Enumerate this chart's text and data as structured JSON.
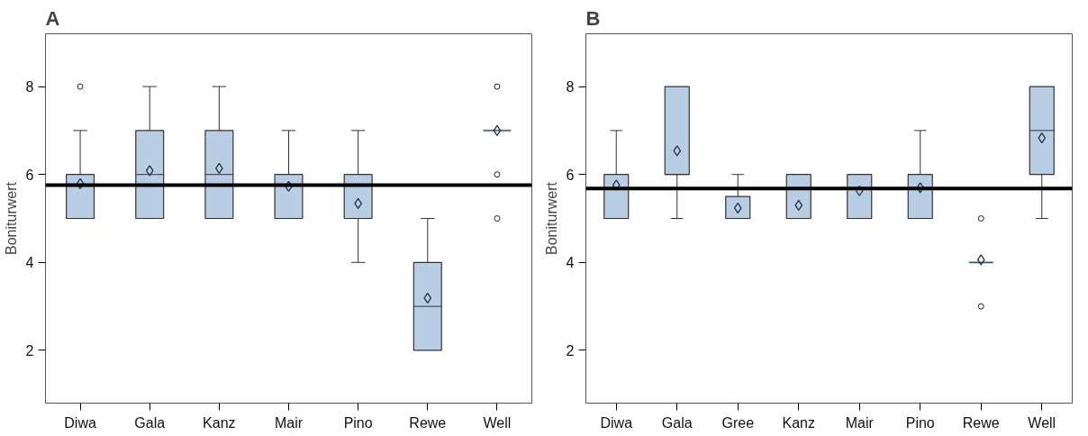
{
  "chart_data": [
    {
      "type": "box",
      "title": "A",
      "ylabel": "Boniturwert",
      "categories": [
        "Diwa",
        "Gala",
        "Kanz",
        "Mair",
        "Pino",
        "Rewe",
        "Well"
      ],
      "ylim": [
        0.8,
        9.2
      ],
      "yticks": [
        2,
        4,
        6,
        8
      ],
      "grid": false,
      "series": [
        {
          "color": "#b9cde5",
          "boxes": [
            {
              "low": 5,
              "q1": 5,
              "median": 5,
              "q3": 6,
              "high": 7,
              "mean": 5.79,
              "outliers": [
                8
              ]
            },
            {
              "low": 5,
              "q1": 5,
              "median": 6,
              "q3": 7,
              "high": 8,
              "mean": 6.09
            },
            {
              "low": 5,
              "q1": 5,
              "median": 6,
              "q3": 7,
              "high": 8,
              "mean": 6.14
            },
            {
              "low": 5,
              "q1": 5,
              "median": 5,
              "q3": 6,
              "high": 7,
              "mean": 5.73
            },
            {
              "low": 4,
              "q1": 5,
              "median": 5,
              "q3": 6,
              "high": 7,
              "mean": 5.34
            },
            {
              "low": 2,
              "q1": 2,
              "median": 3,
              "q3": 4,
              "high": 5,
              "mean": 3.19
            },
            {
              "low": 7,
              "q1": 7,
              "median": 7,
              "q3": 7,
              "high": 7,
              "mean": 7,
              "outliers": [
                8,
                6,
                5
              ]
            }
          ]
        }
      ],
      "ref_lines": [
        {
          "axis": "y",
          "value": 5.76,
          "color": "#000000"
        }
      ]
    },
    {
      "type": "box",
      "title": "B",
      "ylabel": "Boniturwert",
      "categories": [
        "Diwa",
        "Gala",
        "Gree",
        "Kanz",
        "Mair",
        "Pino",
        "Rewe",
        "Well"
      ],
      "ylim": [
        0.8,
        9.2
      ],
      "yticks": [
        2,
        4,
        6,
        8
      ],
      "grid": false,
      "series": [
        {
          "color": "#b9cde5",
          "boxes": [
            {
              "low": 5,
              "q1": 5,
              "median": 5,
              "q3": 6,
              "high": 7,
              "mean": 5.76
            },
            {
              "low": 5,
              "q1": 6,
              "median": 6,
              "q3": 8,
              "high": 8,
              "mean": 6.54
            },
            {
              "low": 5,
              "q1": 5,
              "median": 5,
              "q3": 5.5,
              "high": 6,
              "mean": 5.24
            },
            {
              "low": 5,
              "q1": 5,
              "median": 5,
              "q3": 6,
              "high": 6,
              "mean": 5.3
            },
            {
              "low": 5,
              "q1": 5,
              "median": 5,
              "q3": 6,
              "high": 6,
              "mean": 5.63
            },
            {
              "low": 5,
              "q1": 5,
              "median": 5,
              "q3": 6,
              "high": 7,
              "mean": 5.7
            },
            {
              "low": 4,
              "q1": 4,
              "median": 4,
              "q3": 4,
              "high": 4,
              "mean": 4.06,
              "outliers": [
                5,
                3
              ]
            },
            {
              "low": 5,
              "q1": 6,
              "median": 7,
              "q3": 8,
              "high": 8,
              "mean": 6.83
            }
          ]
        }
      ],
      "ref_lines": [
        {
          "axis": "y",
          "value": 5.68,
          "color": "#000000"
        }
      ]
    }
  ]
}
